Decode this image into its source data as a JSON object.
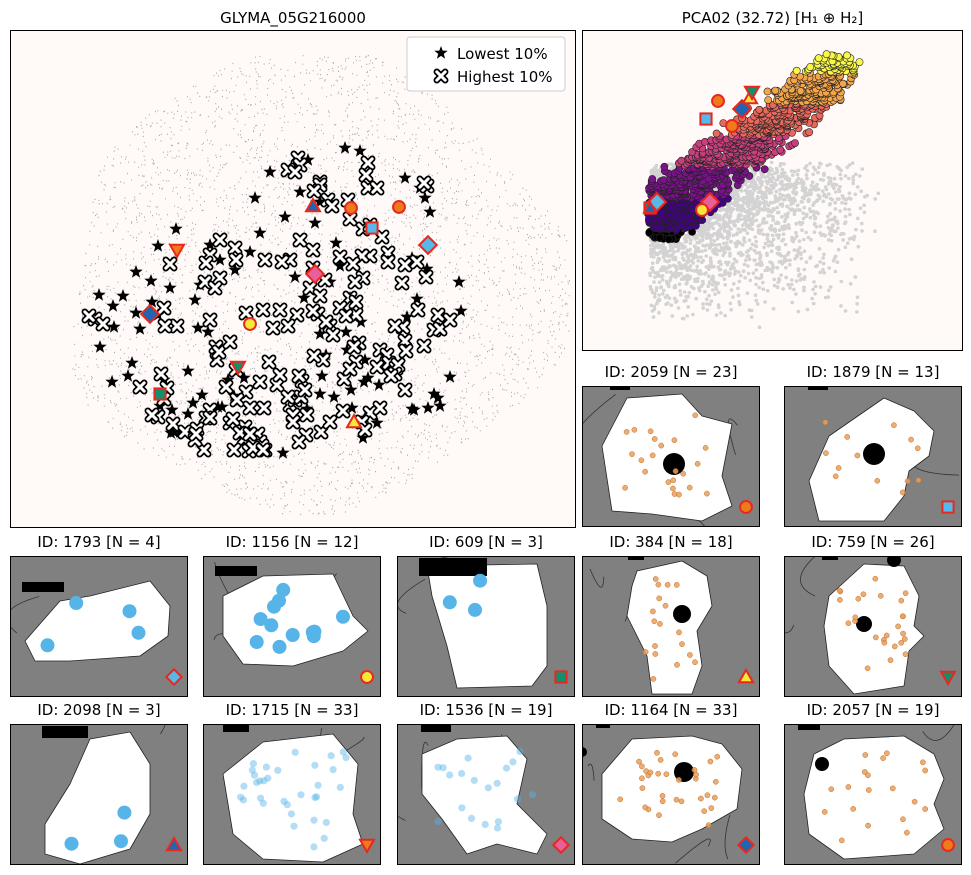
{
  "main_map": {
    "title": "GLYMA_05G216000",
    "legend": [
      {
        "symbol": "star",
        "label": "Lowest 10%"
      },
      {
        "symbol": "cross",
        "label": "Highest 10%"
      }
    ],
    "background": "#fffaf8"
  },
  "pca": {
    "title": "PCA02 (32.72) [H₁ ⊕ H₂]",
    "colormap": [
      "#f8f84a",
      "#f4a54a",
      "#e8685c",
      "#c93f7d",
      "#7a128a",
      "#45008a"
    ],
    "background_points_color": "#d3d3d3"
  },
  "markers": {
    "circle_yellow": {
      "shape": "circle",
      "fill": "#f5e83a",
      "stroke": "#e8281e"
    },
    "circle_orange": {
      "shape": "circle",
      "fill": "#ee7a1a",
      "stroke": "#e8281e"
    },
    "square_blue": {
      "shape": "square",
      "fill": "#58b8e8",
      "stroke": "#e8281e"
    },
    "square_green": {
      "shape": "square",
      "fill": "#12906e",
      "stroke": "#e8281e"
    },
    "diamond_pink": {
      "shape": "diamond",
      "fill": "#e8609a",
      "stroke": "#e8281e"
    },
    "diamond_lblue": {
      "shape": "diamond",
      "fill": "#58b8e8",
      "stroke": "#e8281e"
    },
    "diamond_dblue": {
      "shape": "diamond",
      "fill": "#1e66b2",
      "stroke": "#e8281e"
    },
    "triangle_up_yel": {
      "shape": "triangle_up",
      "fill": "#f5e83a",
      "stroke": "#e8281e"
    },
    "triangle_up_blue": {
      "shape": "triangle_up",
      "fill": "#1e66b2",
      "stroke": "#e8281e"
    },
    "triangle_dn_grn": {
      "shape": "triangle_down",
      "fill": "#12906e",
      "stroke": "#e8281e"
    },
    "triangle_dn_or": {
      "shape": "triangle_down",
      "fill": "#ee7a1a",
      "stroke": "#e8281e"
    }
  },
  "cells": [
    {
      "title": "ID: 2059 [N = 23]",
      "marker": "circle_orange"
    },
    {
      "title": "ID: 1879 [N = 13]",
      "marker": "square_blue"
    },
    {
      "title": "ID: 1793 [N = 4]",
      "marker": "diamond_lblue"
    },
    {
      "title": "ID: 1156 [N = 12]",
      "marker": "circle_yellow"
    },
    {
      "title": "ID: 609 [N = 3]",
      "marker": "square_green"
    },
    {
      "title": "ID: 384 [N = 18]",
      "marker": "triangle_up_yel"
    },
    {
      "title": "ID: 759 [N = 26]",
      "marker": "triangle_dn_grn"
    },
    {
      "title": "ID: 2098 [N = 3]",
      "marker": "triangle_up_blue"
    },
    {
      "title": "ID: 1715 [N = 33]",
      "marker": "triangle_dn_or"
    },
    {
      "title": "ID: 1536 [N = 19]",
      "marker": "diamond_pink"
    },
    {
      "title": "ID: 1164 [N = 33]",
      "marker": "diamond_dblue"
    },
    {
      "title": "ID: 2057 [N = 19]",
      "marker": "circle_orange"
    }
  ],
  "colors": {
    "cell_bg": "#808080",
    "cell_fg": "#ffffff",
    "transcript_blue": "#56b4e9",
    "transcript_orange": "#e69f5a"
  }
}
